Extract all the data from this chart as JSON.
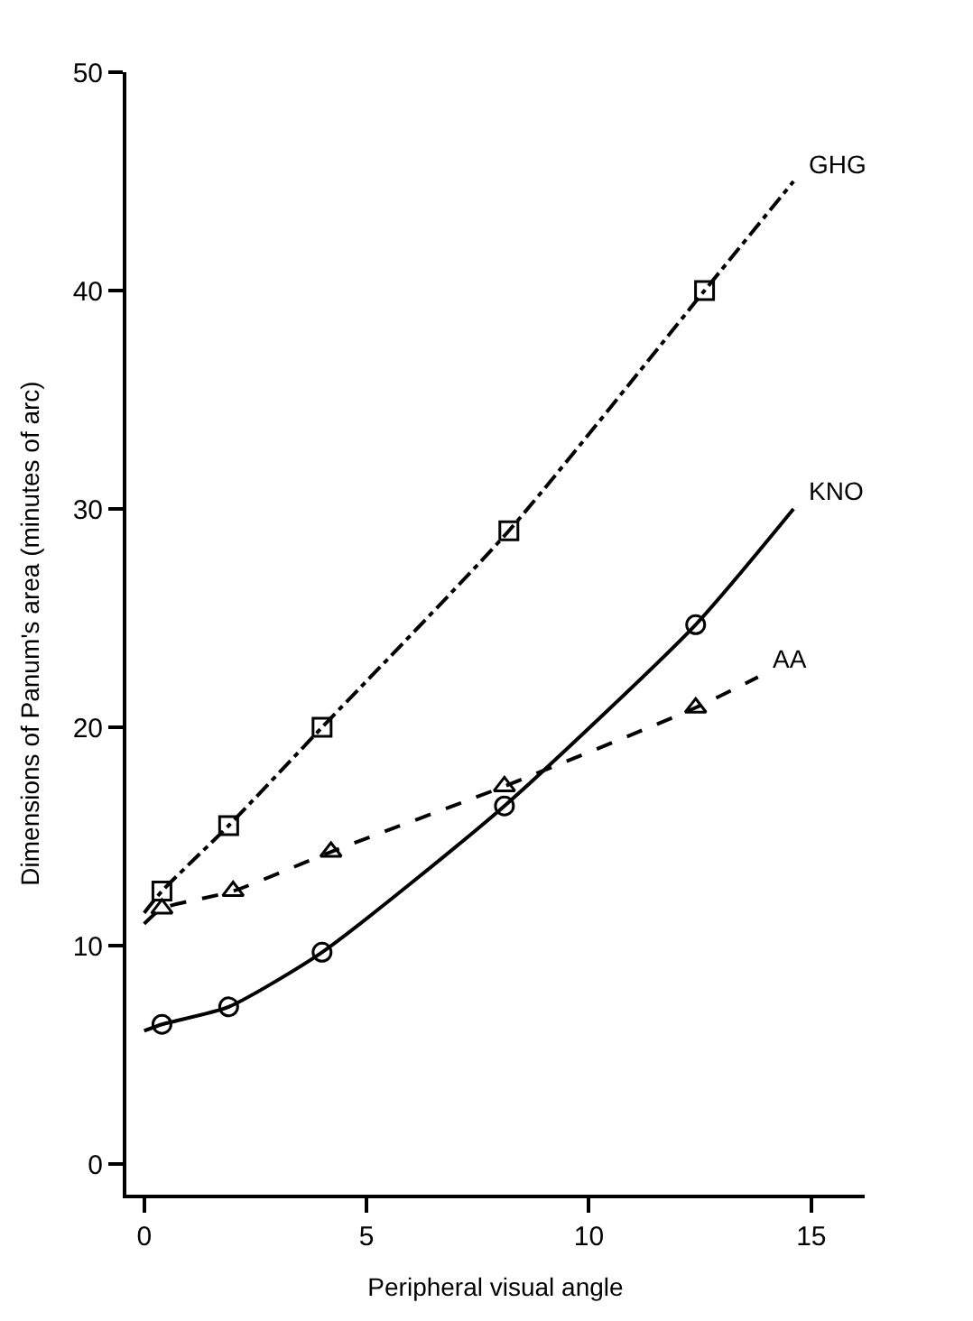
{
  "chart_data": {
    "type": "line",
    "xlabel": "Peripheral visual angle",
    "ylabel": "Dimensions of Panum's area (minutes of arc)",
    "xlim": [
      -0.4,
      16.2
    ],
    "ylim": [
      -1.4,
      50
    ],
    "xticks": [
      0,
      5,
      10,
      15
    ],
    "yticks": [
      0,
      10,
      20,
      30,
      40,
      50
    ],
    "legend": false,
    "series": [
      {
        "name": "GHG",
        "color": "#000000",
        "line_style": "dashdot",
        "marker": "none",
        "x": [
          0,
          0.4,
          1.9,
          4,
          8.2,
          12.6,
          14.6
        ],
        "values": [
          11.5,
          12.5,
          15.5,
          20,
          29,
          40,
          45
        ]
      },
      {
        "name": "KNO",
        "color": "#000000",
        "line_style": "solid",
        "marker": "none",
        "x": [
          0,
          0.4,
          1.9,
          4,
          8.1,
          12.4,
          14.6
        ],
        "values": [
          6.1,
          6.4,
          7.2,
          9.7,
          16.4,
          24.7,
          30
        ]
      },
      {
        "name": "AA",
        "color": "#000000",
        "line_style": "dashed",
        "marker": "none",
        "x": [
          0,
          0.4,
          2,
          4.2,
          8.1,
          12.4,
          13.8
        ],
        "values": [
          11,
          11.7,
          12.5,
          14.3,
          17.3,
          20.9,
          22.3
        ]
      },
      {
        "type": "scatter",
        "color": "#000000",
        "marker": "square",
        "x": [
          0.4,
          1.9,
          4,
          8.2,
          12.6
        ],
        "values": [
          12.5,
          15.5,
          20,
          29,
          40
        ]
      },
      {
        "type": "scatter",
        "color": "#000000",
        "marker": "circle",
        "x": [
          0.4,
          1.9,
          4,
          8.1,
          12.4
        ],
        "values": [
          6.4,
          7.2,
          9.7,
          16.4,
          24.7
        ]
      },
      {
        "type": "scatter",
        "color": "#000000",
        "marker": "triangle",
        "x": [
          0.4,
          2,
          4.2,
          8.1,
          12.4
        ],
        "values": [
          11.7,
          12.5,
          14.3,
          17.3,
          20.9
        ]
      }
    ]
  }
}
